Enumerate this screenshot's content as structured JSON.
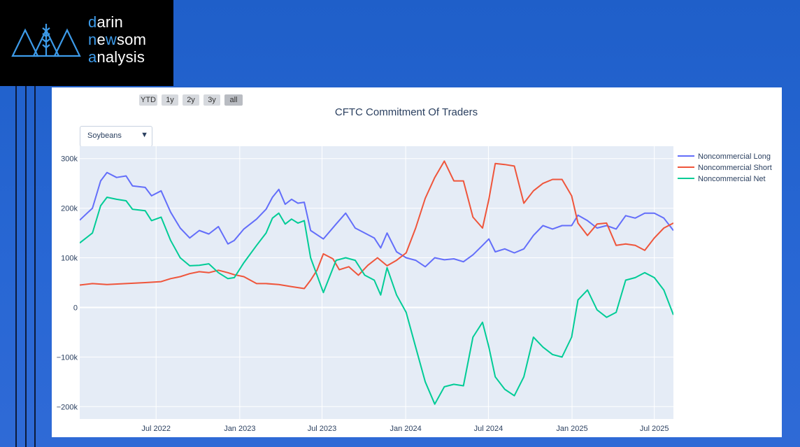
{
  "brand": {
    "line1_first": "d",
    "line1_rest": "arin",
    "line2_a": "n",
    "line2_b": "e",
    "line2_c": "w",
    "line2_d": "som",
    "line3_first": "a",
    "line3_rest": "nalysis"
  },
  "range_buttons": [
    {
      "label": "YTD",
      "active": false
    },
    {
      "label": "1y",
      "active": false
    },
    {
      "label": "2y",
      "active": false
    },
    {
      "label": "3y",
      "active": false
    },
    {
      "label": "all",
      "active": true
    }
  ],
  "dropdown": {
    "selected": "Soybeans"
  },
  "colors": {
    "long": "#636efa",
    "short": "#ef553b",
    "net": "#00cc96",
    "plot_bg": "#e5ecf6",
    "grid": "#ffffff",
    "text": "#2a3f5f"
  },
  "chart_data": {
    "type": "line",
    "title": "CFTC Commitment Of Traders",
    "x_range": [
      "2022-01-14",
      "2025-08-12"
    ],
    "x_ticks": [
      {
        "date": "2022-07-01",
        "label": "Jul 2022"
      },
      {
        "date": "2023-01-01",
        "label": "Jan 2023"
      },
      {
        "date": "2023-07-01",
        "label": "Jul 2023"
      },
      {
        "date": "2024-01-01",
        "label": "Jan 2024"
      },
      {
        "date": "2024-07-01",
        "label": "Jul 2024"
      },
      {
        "date": "2025-01-01",
        "label": "Jan 2025"
      },
      {
        "date": "2025-07-01",
        "label": "Jul 2025"
      }
    ],
    "y_range": [
      -225000,
      325000
    ],
    "y_ticks": [
      {
        "value": 300000,
        "label": "300k"
      },
      {
        "value": 200000,
        "label": "200k"
      },
      {
        "value": 100000,
        "label": "100k"
      },
      {
        "value": 0,
        "label": "0"
      },
      {
        "value": -100000,
        "label": "−100k"
      },
      {
        "value": -200000,
        "label": "−200k"
      }
    ],
    "legend_position": "right",
    "series": [
      {
        "name": "Noncommercial Long",
        "color": "#636efa",
        "points": [
          [
            "2022-01-14",
            176000
          ],
          [
            "2022-02-11",
            200000
          ],
          [
            "2022-03-01",
            255000
          ],
          [
            "2022-03-15",
            272000
          ],
          [
            "2022-04-05",
            262000
          ],
          [
            "2022-04-26",
            265000
          ],
          [
            "2022-05-10",
            245000
          ],
          [
            "2022-06-07",
            242000
          ],
          [
            "2022-06-21",
            225000
          ],
          [
            "2022-07-12",
            235000
          ],
          [
            "2022-08-02",
            192000
          ],
          [
            "2022-08-23",
            160000
          ],
          [
            "2022-09-13",
            140000
          ],
          [
            "2022-10-04",
            155000
          ],
          [
            "2022-10-25",
            148000
          ],
          [
            "2022-11-15",
            163000
          ],
          [
            "2022-12-06",
            128000
          ],
          [
            "2022-12-20",
            135000
          ],
          [
            "2023-01-10",
            158000
          ],
          [
            "2023-02-07",
            178000
          ],
          [
            "2023-02-28",
            198000
          ],
          [
            "2023-03-14",
            222000
          ],
          [
            "2023-03-28",
            238000
          ],
          [
            "2023-04-11",
            208000
          ],
          [
            "2023-04-25",
            218000
          ],
          [
            "2023-05-09",
            210000
          ],
          [
            "2023-05-23",
            212000
          ],
          [
            "2023-06-06",
            155000
          ],
          [
            "2023-07-04",
            138000
          ],
          [
            "2023-08-01",
            168000
          ],
          [
            "2023-08-22",
            190000
          ],
          [
            "2023-09-12",
            160000
          ],
          [
            "2023-10-03",
            150000
          ],
          [
            "2023-10-24",
            140000
          ],
          [
            "2023-11-07",
            120000
          ],
          [
            "2023-11-21",
            150000
          ],
          [
            "2023-12-12",
            112000
          ],
          [
            "2024-01-02",
            100000
          ],
          [
            "2024-01-23",
            95000
          ],
          [
            "2024-02-13",
            82000
          ],
          [
            "2024-03-05",
            100000
          ],
          [
            "2024-03-26",
            96000
          ],
          [
            "2024-04-16",
            98000
          ],
          [
            "2024-05-07",
            92000
          ],
          [
            "2024-05-28",
            106000
          ],
          [
            "2024-06-18",
            125000
          ],
          [
            "2024-07-02",
            138000
          ],
          [
            "2024-07-16",
            112000
          ],
          [
            "2024-08-06",
            118000
          ],
          [
            "2024-08-27",
            110000
          ],
          [
            "2024-09-17",
            118000
          ],
          [
            "2024-10-08",
            145000
          ],
          [
            "2024-10-29",
            165000
          ],
          [
            "2024-11-19",
            158000
          ],
          [
            "2024-12-10",
            165000
          ],
          [
            "2024-12-31",
            165000
          ],
          [
            "2025-01-14",
            186000
          ],
          [
            "2025-02-04",
            175000
          ],
          [
            "2025-02-25",
            160000
          ],
          [
            "2025-03-18",
            165000
          ],
          [
            "2025-04-08",
            158000
          ],
          [
            "2025-04-29",
            185000
          ],
          [
            "2025-05-20",
            180000
          ],
          [
            "2025-06-10",
            190000
          ],
          [
            "2025-07-01",
            190000
          ],
          [
            "2025-07-22",
            180000
          ],
          [
            "2025-08-12",
            155000
          ]
        ]
      },
      {
        "name": "Noncommercial Short",
        "color": "#ef553b",
        "points": [
          [
            "2022-01-14",
            45000
          ],
          [
            "2022-02-11",
            48000
          ],
          [
            "2022-03-15",
            46000
          ],
          [
            "2022-04-26",
            48000
          ],
          [
            "2022-06-07",
            50000
          ],
          [
            "2022-07-12",
            52000
          ],
          [
            "2022-08-02",
            58000
          ],
          [
            "2022-08-23",
            62000
          ],
          [
            "2022-09-13",
            68000
          ],
          [
            "2022-10-04",
            72000
          ],
          [
            "2022-10-25",
            70000
          ],
          [
            "2022-11-15",
            75000
          ],
          [
            "2022-12-06",
            70000
          ],
          [
            "2022-12-20",
            66000
          ],
          [
            "2023-01-10",
            62000
          ],
          [
            "2023-02-07",
            48000
          ],
          [
            "2023-02-28",
            48000
          ],
          [
            "2023-03-28",
            46000
          ],
          [
            "2023-04-25",
            42000
          ],
          [
            "2023-05-23",
            38000
          ],
          [
            "2023-06-06",
            55000
          ],
          [
            "2023-06-20",
            75000
          ],
          [
            "2023-07-04",
            108000
          ],
          [
            "2023-07-25",
            98000
          ],
          [
            "2023-08-08",
            76000
          ],
          [
            "2023-08-29",
            82000
          ],
          [
            "2023-09-19",
            65000
          ],
          [
            "2023-10-10",
            85000
          ],
          [
            "2023-10-31",
            100000
          ],
          [
            "2023-11-21",
            84000
          ],
          [
            "2023-12-12",
            95000
          ],
          [
            "2024-01-02",
            110000
          ],
          [
            "2024-01-23",
            160000
          ],
          [
            "2024-02-13",
            220000
          ],
          [
            "2024-03-05",
            262000
          ],
          [
            "2024-03-26",
            295000
          ],
          [
            "2024-04-16",
            255000
          ],
          [
            "2024-05-07",
            255000
          ],
          [
            "2024-05-28",
            182000
          ],
          [
            "2024-06-18",
            160000
          ],
          [
            "2024-07-02",
            218000
          ],
          [
            "2024-07-16",
            290000
          ],
          [
            "2024-08-06",
            288000
          ],
          [
            "2024-08-27",
            285000
          ],
          [
            "2024-09-17",
            210000
          ],
          [
            "2024-10-08",
            235000
          ],
          [
            "2024-10-29",
            250000
          ],
          [
            "2024-11-19",
            258000
          ],
          [
            "2024-12-10",
            258000
          ],
          [
            "2024-12-31",
            225000
          ],
          [
            "2025-01-14",
            170000
          ],
          [
            "2025-02-04",
            145000
          ],
          [
            "2025-02-25",
            168000
          ],
          [
            "2025-03-18",
            170000
          ],
          [
            "2025-04-08",
            125000
          ],
          [
            "2025-04-29",
            128000
          ],
          [
            "2025-05-20",
            125000
          ],
          [
            "2025-06-10",
            115000
          ],
          [
            "2025-07-01",
            140000
          ],
          [
            "2025-07-22",
            160000
          ],
          [
            "2025-08-12",
            170000
          ]
        ]
      },
      {
        "name": "Noncommercial Net",
        "color": "#00cc96",
        "points": [
          [
            "2022-01-14",
            130000
          ],
          [
            "2022-02-11",
            150000
          ],
          [
            "2022-03-01",
            205000
          ],
          [
            "2022-03-15",
            222000
          ],
          [
            "2022-04-05",
            218000
          ],
          [
            "2022-04-26",
            215000
          ],
          [
            "2022-05-10",
            198000
          ],
          [
            "2022-06-07",
            195000
          ],
          [
            "2022-06-21",
            175000
          ],
          [
            "2022-07-12",
            182000
          ],
          [
            "2022-08-02",
            135000
          ],
          [
            "2022-08-23",
            100000
          ],
          [
            "2022-09-13",
            84000
          ],
          [
            "2022-10-04",
            85000
          ],
          [
            "2022-10-25",
            88000
          ],
          [
            "2022-11-15",
            70000
          ],
          [
            "2022-12-06",
            58000
          ],
          [
            "2022-12-20",
            60000
          ],
          [
            "2023-01-10",
            90000
          ],
          [
            "2023-02-07",
            125000
          ],
          [
            "2023-02-28",
            150000
          ],
          [
            "2023-03-14",
            180000
          ],
          [
            "2023-03-28",
            190000
          ],
          [
            "2023-04-11",
            168000
          ],
          [
            "2023-04-25",
            178000
          ],
          [
            "2023-05-09",
            170000
          ],
          [
            "2023-05-23",
            175000
          ],
          [
            "2023-06-06",
            100000
          ],
          [
            "2023-07-04",
            30000
          ],
          [
            "2023-08-01",
            95000
          ],
          [
            "2023-08-22",
            100000
          ],
          [
            "2023-09-12",
            95000
          ],
          [
            "2023-10-03",
            65000
          ],
          [
            "2023-10-24",
            55000
          ],
          [
            "2023-11-07",
            25000
          ],
          [
            "2023-11-21",
            80000
          ],
          [
            "2023-12-12",
            25000
          ],
          [
            "2024-01-02",
            -10000
          ],
          [
            "2024-01-23",
            -80000
          ],
          [
            "2024-02-13",
            -150000
          ],
          [
            "2024-03-05",
            -195000
          ],
          [
            "2024-03-26",
            -160000
          ],
          [
            "2024-04-16",
            -155000
          ],
          [
            "2024-05-07",
            -158000
          ],
          [
            "2024-05-28",
            -60000
          ],
          [
            "2024-06-18",
            -30000
          ],
          [
            "2024-07-02",
            -80000
          ],
          [
            "2024-07-16",
            -140000
          ],
          [
            "2024-08-06",
            -165000
          ],
          [
            "2024-08-27",
            -178000
          ],
          [
            "2024-09-17",
            -140000
          ],
          [
            "2024-10-08",
            -60000
          ],
          [
            "2024-10-29",
            -80000
          ],
          [
            "2024-11-19",
            -95000
          ],
          [
            "2024-12-10",
            -100000
          ],
          [
            "2024-12-31",
            -60000
          ],
          [
            "2025-01-14",
            15000
          ],
          [
            "2025-02-04",
            35000
          ],
          [
            "2025-02-25",
            -5000
          ],
          [
            "2025-03-18",
            -20000
          ],
          [
            "2025-04-08",
            -10000
          ],
          [
            "2025-04-29",
            55000
          ],
          [
            "2025-05-20",
            60000
          ],
          [
            "2025-06-10",
            70000
          ],
          [
            "2025-07-01",
            60000
          ],
          [
            "2025-07-22",
            35000
          ],
          [
            "2025-08-12",
            -15000
          ]
        ]
      }
    ]
  }
}
